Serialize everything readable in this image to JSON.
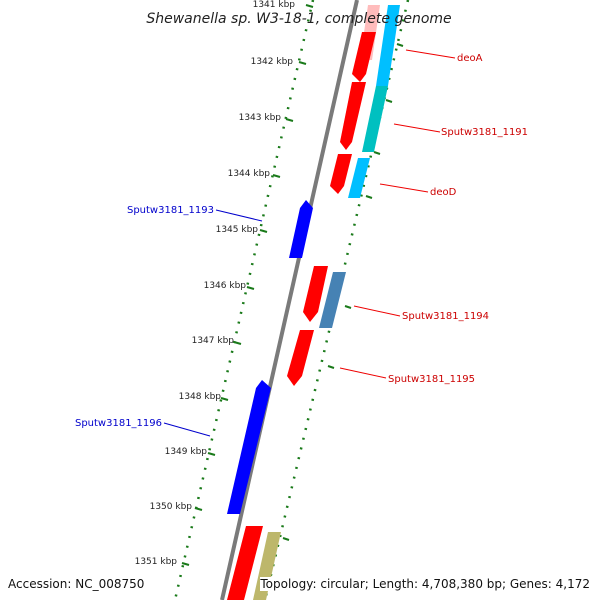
{
  "title": "Shewanella sp. W3-18-1, complete genome",
  "accession": "Accession: NC_008750",
  "summary": "Topology: circular; Length: 4,708,380 bp; Genes: 4,172",
  "ticks": [
    "1341 kbp",
    "1342 kbp",
    "1343 kbp",
    "1344 kbp",
    "1345 kbp",
    "1346 kbp",
    "1347 kbp",
    "1348 kbp",
    "1349 kbp",
    "1350 kbp",
    "1351 kbp"
  ],
  "genes_forward": [
    {
      "label": "deoA",
      "color": "#cc0000"
    },
    {
      "label": "Sputw3181_1191",
      "color": "#cc0000"
    },
    {
      "label": "deoD",
      "color": "#cc0000"
    },
    {
      "label": "Sputw3181_1194",
      "color": "#cc0000"
    },
    {
      "label": "Sputw3181_1195",
      "color": "#cc0000"
    }
  ],
  "genes_reverse": [
    {
      "label": "Sputw3181_1193",
      "color": "#0000cc"
    },
    {
      "label": "Sputw3181_1196",
      "color": "#0000cc"
    }
  ],
  "colors": {
    "backbone": "#808080",
    "forward_cds": "#ff0000",
    "reverse_cds": "#0000ff",
    "cog_cyan": "#00bfff",
    "cog_teal": "#00c0c0",
    "cog_steel": "#4682b4",
    "cog_khaki": "#bdb76b",
    "dotted_ring": "#1a7a1a"
  }
}
